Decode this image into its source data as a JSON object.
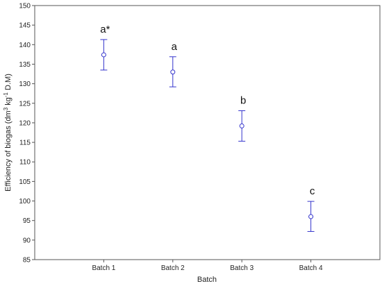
{
  "chart_data": {
    "type": "scatter",
    "title": "",
    "xlabel": "Batch",
    "ylabel": {
      "prefix": "Efficiency of biogas (dm",
      "sup1": "3",
      "mid": " kg",
      "sup2": "-1",
      "suffix": " D.M)"
    },
    "ylim": [
      85,
      150
    ],
    "yticks": [
      85,
      90,
      95,
      100,
      105,
      110,
      115,
      120,
      125,
      130,
      135,
      140,
      145,
      150
    ],
    "grid": false,
    "categories": [
      "Batch 1",
      "Batch 2",
      "Batch 3",
      "Batch 4"
    ],
    "series": [
      {
        "values": [
          137.4,
          133.0,
          119.2,
          96.0
        ],
        "error_low": [
          133.5,
          129.2,
          115.3,
          92.2
        ],
        "error_high": [
          141.3,
          136.9,
          123.1,
          99.9
        ],
        "labels": [
          "a*",
          "a",
          "b",
          "c"
        ]
      }
    ],
    "colors": {
      "marker": "#3333cc",
      "axis": "#555555"
    }
  }
}
